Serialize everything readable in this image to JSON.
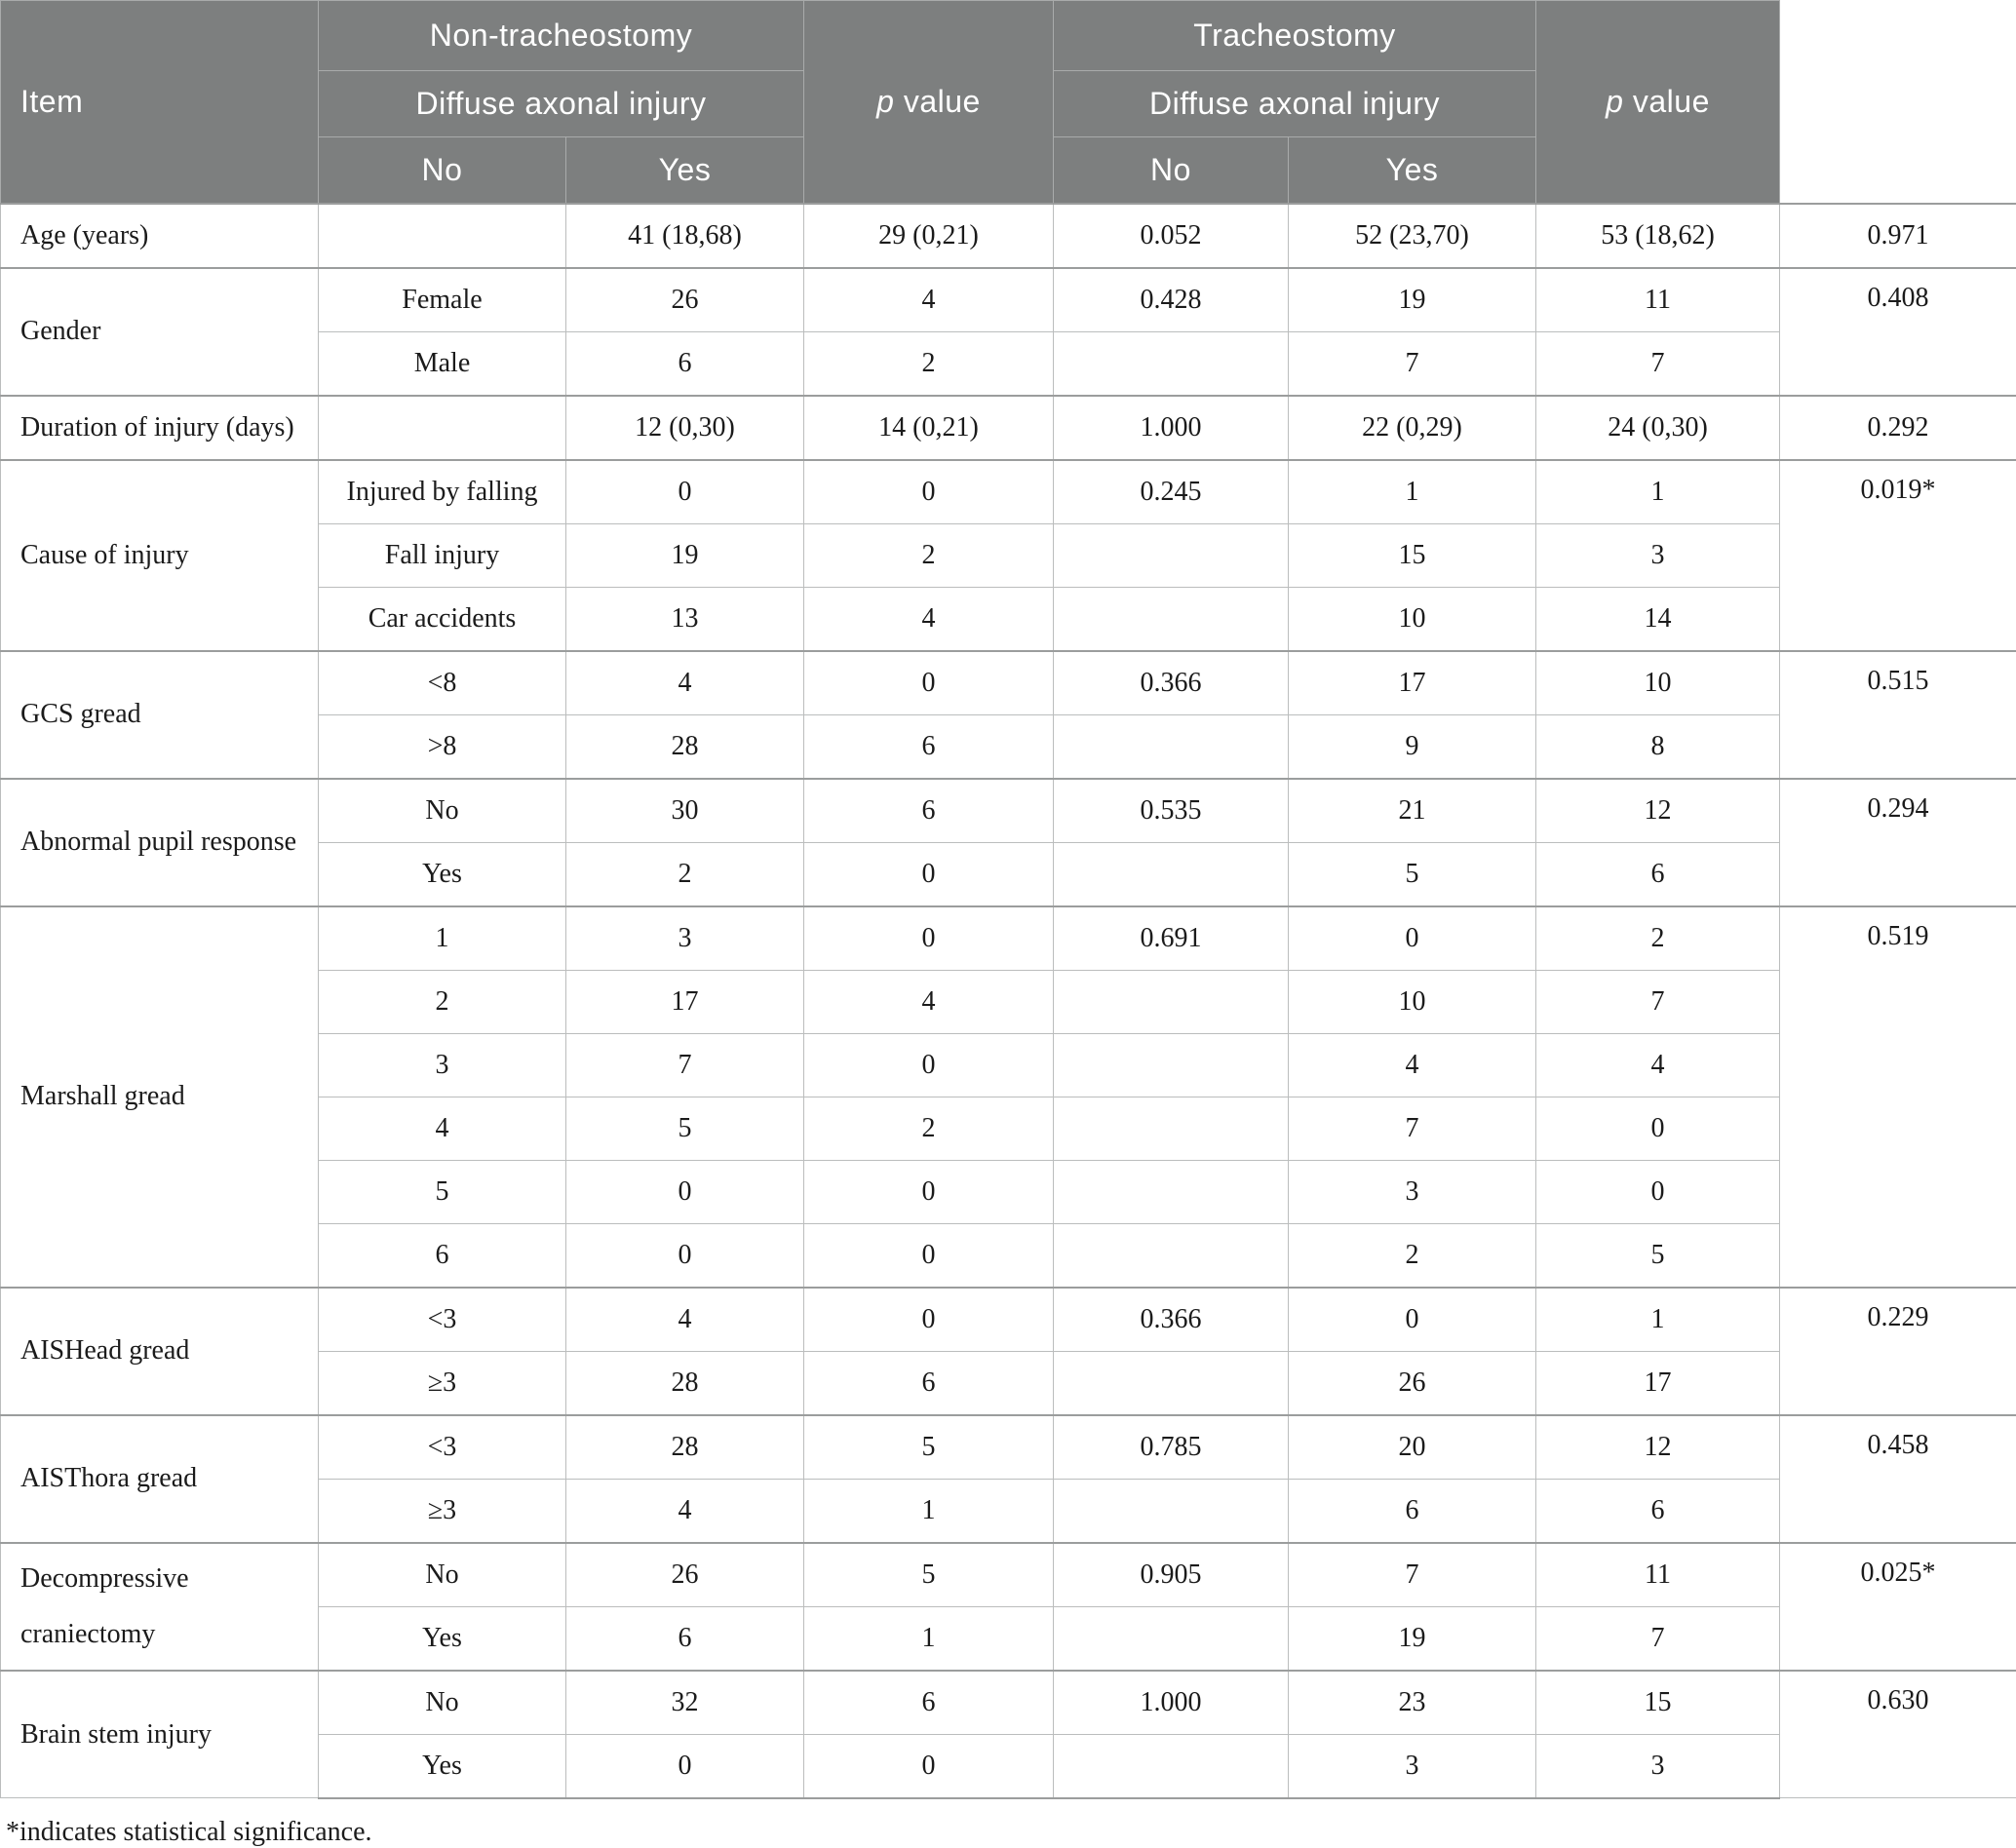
{
  "header": {
    "item_label": "Item",
    "group_non_tracheostomy": "Non-tracheostomy",
    "group_tracheostomy": "Tracheostomy",
    "subheader_1": "Diffuse axonal injury",
    "subheader_2": "Diffuse axonal injury",
    "col_no_1": "No",
    "col_yes_1": "Yes",
    "col_no_2": "No",
    "col_yes_2": "Yes",
    "p_italic": "p",
    "p_rest": " value"
  },
  "sections": [
    {
      "item": "Age (years)",
      "rows": [
        {
          "sub": "",
          "nt_no": "41 (18,68)",
          "nt_yes": "29 (0,21)",
          "p1": "0.052",
          "t_no": "52 (23,70)",
          "t_yes": "53 (18,62)",
          "p2": "0.971"
        }
      ]
    },
    {
      "item": "Gender",
      "rows": [
        {
          "sub": "Female",
          "nt_no": "26",
          "nt_yes": "4",
          "p1": "0.428",
          "t_no": "19",
          "t_yes": "11",
          "p2": "0.408"
        },
        {
          "sub": "Male",
          "nt_no": "6",
          "nt_yes": "2",
          "p1": "",
          "t_no": "7",
          "t_yes": "7"
        }
      ]
    },
    {
      "item": "Duration of injury (days)",
      "rows": [
        {
          "sub": "",
          "nt_no": "12 (0,30)",
          "nt_yes": "14 (0,21)",
          "p1": "1.000",
          "t_no": "22 (0,29)",
          "t_yes": "24 (0,30)",
          "p2": "0.292"
        }
      ]
    },
    {
      "item": "Cause of injury",
      "rows": [
        {
          "sub": "Injured by falling",
          "nt_no": "0",
          "nt_yes": "0",
          "p1": "0.245",
          "t_no": "1",
          "t_yes": "1",
          "p2": "0.019*"
        },
        {
          "sub": "Fall injury",
          "nt_no": "19",
          "nt_yes": "2",
          "p1": "",
          "t_no": "15",
          "t_yes": "3"
        },
        {
          "sub": "Car accidents",
          "nt_no": "13",
          "nt_yes": "4",
          "p1": "",
          "t_no": "10",
          "t_yes": "14"
        }
      ]
    },
    {
      "item": "GCS gread",
      "rows": [
        {
          "sub": "<8",
          "nt_no": "4",
          "nt_yes": "0",
          "p1": "0.366",
          "t_no": "17",
          "t_yes": "10",
          "p2": "0.515"
        },
        {
          "sub": ">8",
          "nt_no": "28",
          "nt_yes": "6",
          "p1": "",
          "t_no": "9",
          "t_yes": "8"
        }
      ]
    },
    {
      "item": "Abnormal pupil response",
      "rows": [
        {
          "sub": "No",
          "nt_no": "30",
          "nt_yes": "6",
          "p1": "0.535",
          "t_no": "21",
          "t_yes": "12",
          "p2": "0.294"
        },
        {
          "sub": "Yes",
          "nt_no": "2",
          "nt_yes": "0",
          "p1": "",
          "t_no": "5",
          "t_yes": "6"
        }
      ]
    },
    {
      "item": "Marshall gread",
      "rows": [
        {
          "sub": "1",
          "nt_no": "3",
          "nt_yes": "0",
          "p1": "0.691",
          "t_no": "0",
          "t_yes": "2",
          "p2": "0.519"
        },
        {
          "sub": "2",
          "nt_no": "17",
          "nt_yes": "4",
          "p1": "",
          "t_no": "10",
          "t_yes": "7"
        },
        {
          "sub": "3",
          "nt_no": "7",
          "nt_yes": "0",
          "p1": "",
          "t_no": "4",
          "t_yes": "4"
        },
        {
          "sub": "4",
          "nt_no": "5",
          "nt_yes": "2",
          "p1": "",
          "t_no": "7",
          "t_yes": "0"
        },
        {
          "sub": "5",
          "nt_no": "0",
          "nt_yes": "0",
          "p1": "",
          "t_no": "3",
          "t_yes": "0"
        },
        {
          "sub": "6",
          "nt_no": "0",
          "nt_yes": "0",
          "p1": "",
          "t_no": "2",
          "t_yes": "5"
        }
      ]
    },
    {
      "item": "AISHead gread",
      "rows": [
        {
          "sub": "<3",
          "nt_no": "4",
          "nt_yes": "0",
          "p1": "0.366",
          "t_no": "0",
          "t_yes": "1",
          "p2": "0.229"
        },
        {
          "sub": "≥3",
          "nt_no": "28",
          "nt_yes": "6",
          "p1": "",
          "t_no": "26",
          "t_yes": "17"
        }
      ]
    },
    {
      "item": "AISThora gread",
      "rows": [
        {
          "sub": "<3",
          "nt_no": "28",
          "nt_yes": "5",
          "p1": "0.785",
          "t_no": "20",
          "t_yes": "12",
          "p2": "0.458"
        },
        {
          "sub": "≥3",
          "nt_no": "4",
          "nt_yes": "1",
          "p1": "",
          "t_no": "6",
          "t_yes": "6"
        }
      ]
    },
    {
      "item": "Decompressive craniectomy",
      "rows": [
        {
          "sub": "No",
          "nt_no": "26",
          "nt_yes": "5",
          "p1": "0.905",
          "t_no": "7",
          "t_yes": "11",
          "p2": "0.025*"
        },
        {
          "sub": "Yes",
          "nt_no": "6",
          "nt_yes": "1",
          "p1": "",
          "t_no": "19",
          "t_yes": "7"
        }
      ]
    },
    {
      "item": "Brain stem injury",
      "rows": [
        {
          "sub": "No",
          "nt_no": "32",
          "nt_yes": "6",
          "p1": "1.000",
          "t_no": "23",
          "t_yes": "15",
          "p2": "0.630"
        },
        {
          "sub": "Yes",
          "nt_no": "0",
          "nt_yes": "0",
          "p1": "",
          "t_no": "3",
          "t_yes": "3"
        }
      ]
    }
  ],
  "footnote": "*indicates statistical significance."
}
